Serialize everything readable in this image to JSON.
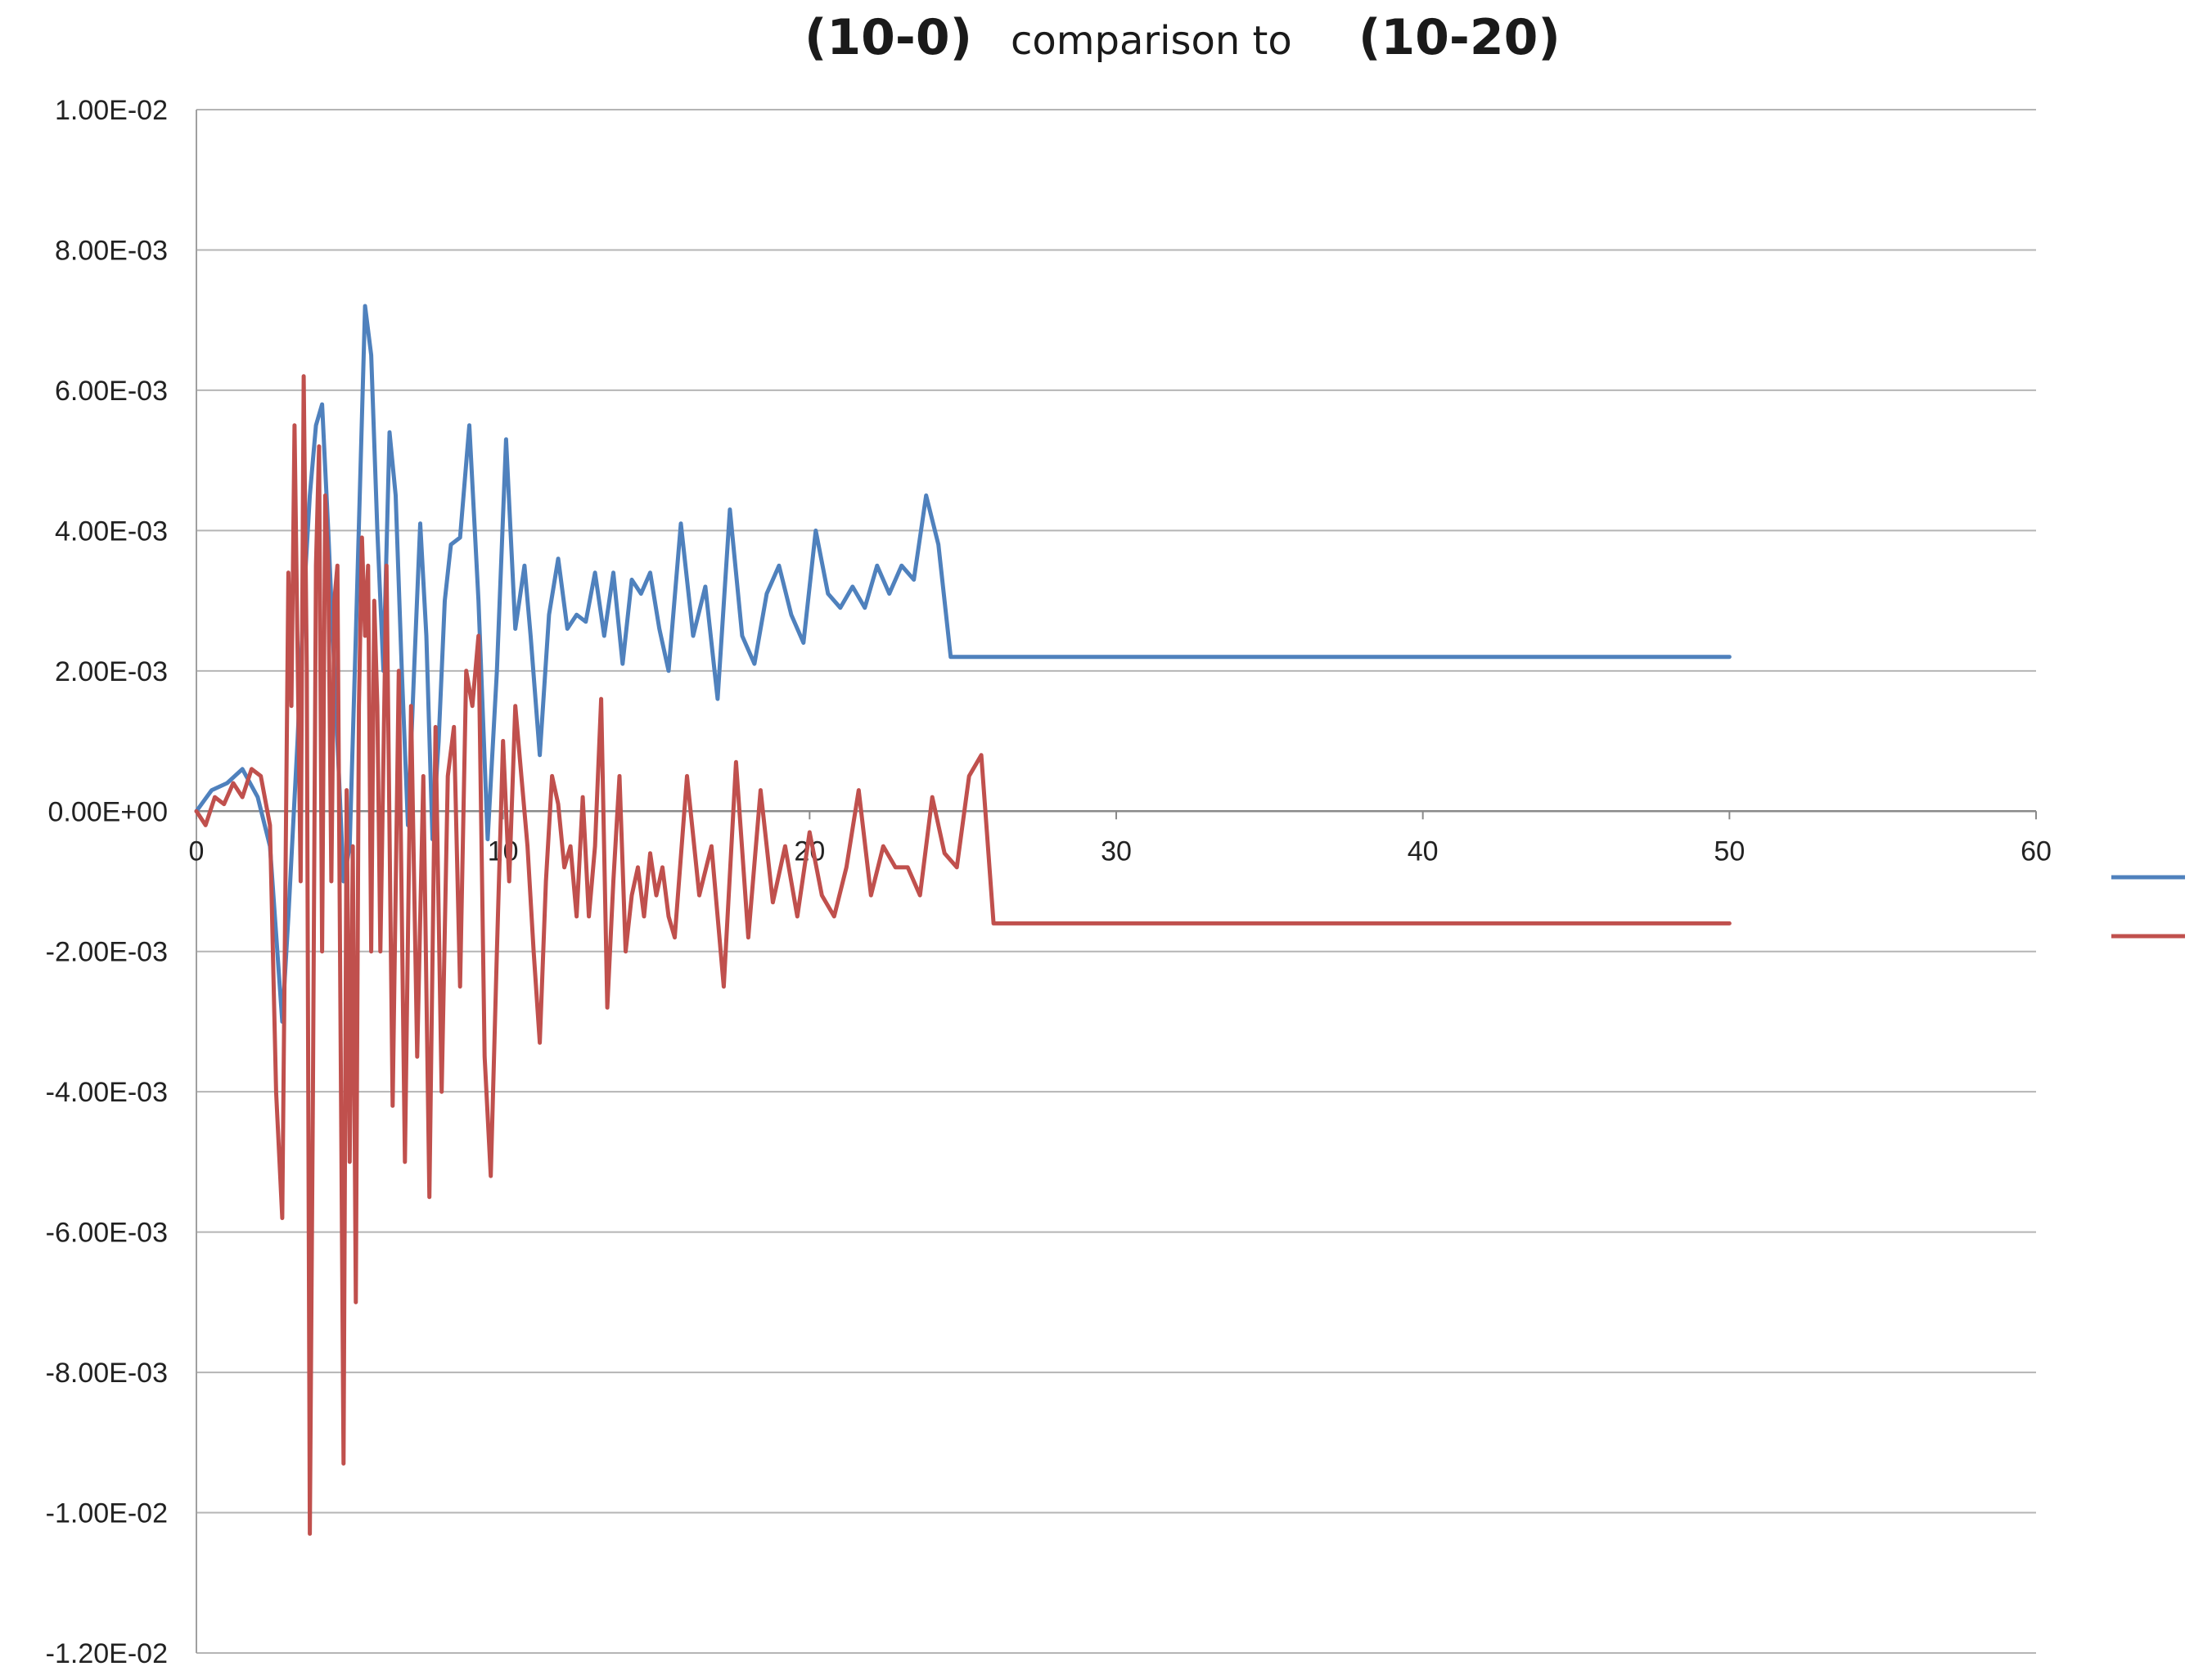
{
  "chart_data": {
    "type": "line",
    "title": {
      "part1": "(10-0)",
      "part2": "comparison to",
      "part3": "(10-20)"
    },
    "xlabel": "",
    "ylabel": "",
    "xlim": [
      0,
      60
    ],
    "ylim": [
      -0.012,
      0.01
    ],
    "x_ticks": [
      0,
      10,
      20,
      30,
      40,
      50,
      60
    ],
    "x_tick_labels": [
      "0",
      "10",
      "20",
      "30",
      "40",
      "50",
      "60"
    ],
    "y_ticks": [
      0.01,
      0.008,
      0.006,
      0.004,
      0.002,
      0,
      -0.002,
      -0.004,
      -0.006,
      -0.008,
      -0.01,
      -0.012
    ],
    "y_tick_labels": [
      "1.00E-02",
      "8.00E-03",
      "6.00E-03",
      "4.00E-03",
      "2.00E-03",
      "0.00E+00",
      "-2.00E-03",
      "-4.00E-03",
      "-6.00E-03",
      "-8.00E-03",
      "-1.00E-02",
      "-1.20E-02"
    ],
    "grid": "horizontal",
    "legend": "right",
    "series": [
      {
        "color": "#4f81bd",
        "x": [
          0,
          0.5,
          1.0,
          1.5,
          2.0,
          2.4,
          2.8,
          3.0,
          3.3,
          3.5,
          3.7,
          3.9,
          4.1,
          4.3,
          4.5,
          4.8,
          5.0,
          5.2,
          5.5,
          5.7,
          5.9,
          6.1,
          6.3,
          6.5,
          6.7,
          6.9,
          7.1,
          7.3,
          7.5,
          7.7,
          7.9,
          8.1,
          8.3,
          8.6,
          8.9,
          9.2,
          9.5,
          9.8,
          10.1,
          10.4,
          10.7,
          10.9,
          11.2,
          11.5,
          11.8,
          12.1,
          12.4,
          12.7,
          13.0,
          13.3,
          13.6,
          13.9,
          14.2,
          14.5,
          14.8,
          15.1,
          15.4,
          15.8,
          16.2,
          16.6,
          17.0,
          17.4,
          17.8,
          18.2,
          18.6,
          19.0,
          19.4,
          19.8,
          20.2,
          20.6,
          21.0,
          21.4,
          21.8,
          22.2,
          22.6,
          23.0,
          23.4,
          23.8,
          24.2,
          24.6,
          25.0,
          25.4,
          25.8,
          26.2,
          26.6,
          27.0,
          27.4,
          28.0,
          30.0,
          35.0,
          40.0,
          45.0,
          50.0
        ],
        "y": [
          0.0,
          0.0003,
          0.0004,
          0.0006,
          0.0002,
          -0.0005,
          -0.003,
          -0.0015,
          0.001,
          0.003,
          0.0045,
          0.0055,
          0.0058,
          0.004,
          0.002,
          -0.001,
          -0.0005,
          0.0025,
          0.0072,
          0.0065,
          0.004,
          0.002,
          0.0054,
          0.0045,
          0.002,
          -0.0002,
          0.002,
          0.0041,
          0.0025,
          -0.0004,
          0.001,
          0.003,
          0.0038,
          0.0039,
          0.0055,
          0.003,
          -0.0004,
          0.002,
          0.0053,
          0.0026,
          0.0035,
          0.0025,
          0.0008,
          0.0028,
          0.0036,
          0.0026,
          0.0028,
          0.0027,
          0.0034,
          0.0025,
          0.0034,
          0.0021,
          0.0033,
          0.0031,
          0.0034,
          0.0026,
          0.002,
          0.0041,
          0.0025,
          0.0032,
          0.0016,
          0.0043,
          0.0025,
          0.0021,
          0.0031,
          0.0035,
          0.0028,
          0.0024,
          0.004,
          0.0031,
          0.0029,
          0.0032,
          0.0029,
          0.0035,
          0.0031,
          0.0035,
          0.0033,
          0.0045,
          0.0038,
          0.0022,
          0.0022,
          0.0022,
          0.0022,
          0.0022,
          0.0022,
          0.0022,
          0.0022,
          0.0022,
          0.0022,
          0.0022,
          0.0022,
          0.0022,
          0.0022
        ]
      },
      {
        "color": "#c0504d",
        "x": [
          0,
          0.3,
          0.6,
          0.9,
          1.2,
          1.5,
          1.8,
          2.1,
          2.4,
          2.6,
          2.8,
          3.0,
          3.1,
          3.2,
          3.4,
          3.5,
          3.6,
          3.7,
          3.8,
          3.9,
          4.0,
          4.1,
          4.2,
          4.3,
          4.4,
          4.5,
          4.6,
          4.7,
          4.8,
          4.9,
          5.0,
          5.1,
          5.2,
          5.3,
          5.4,
          5.5,
          5.6,
          5.7,
          5.8,
          5.9,
          6.0,
          6.2,
          6.4,
          6.6,
          6.8,
          7.0,
          7.2,
          7.4,
          7.6,
          7.8,
          8.0,
          8.2,
          8.4,
          8.6,
          8.8,
          9.0,
          9.2,
          9.4,
          9.6,
          9.8,
          10.0,
          10.2,
          10.4,
          10.6,
          10.8,
          11.0,
          11.2,
          11.4,
          11.6,
          11.8,
          12.0,
          12.2,
          12.4,
          12.6,
          12.8,
          13.0,
          13.2,
          13.4,
          13.6,
          13.8,
          14.0,
          14.2,
          14.4,
          14.6,
          14.8,
          15.0,
          15.2,
          15.4,
          15.6,
          16.0,
          16.4,
          16.8,
          17.2,
          17.6,
          18.0,
          18.4,
          18.8,
          19.2,
          19.6,
          20.0,
          20.4,
          20.8,
          21.2,
          21.6,
          22.0,
          22.4,
          22.8,
          23.2,
          23.6,
          24.0,
          24.4,
          24.8,
          25.2,
          25.6,
          26.0,
          26.4,
          26.8,
          27.2,
          27.6,
          28.0,
          29.0,
          35.0,
          40.0,
          45.0,
          50.0
        ],
        "y": [
          0.0,
          -0.0002,
          0.0002,
          0.0001,
          0.0004,
          0.0002,
          0.0006,
          0.0005,
          -0.0002,
          -0.004,
          -0.0058,
          0.0034,
          0.0015,
          0.0055,
          -0.001,
          0.0062,
          0.002,
          -0.0103,
          -0.004,
          0.0035,
          0.0052,
          -0.002,
          0.0045,
          0.0035,
          -0.001,
          0.003,
          0.0035,
          -0.003,
          -0.0093,
          0.0003,
          -0.005,
          -0.0005,
          -0.007,
          0.0015,
          0.0039,
          0.0025,
          0.0035,
          -0.002,
          0.003,
          0.0015,
          -0.002,
          0.0035,
          -0.0042,
          0.002,
          -0.005,
          0.0015,
          -0.0035,
          0.0005,
          -0.0055,
          0.0012,
          -0.004,
          0.0005,
          0.0012,
          -0.0025,
          0.002,
          0.0015,
          0.0025,
          -0.0035,
          -0.0052,
          -0.002,
          0.001,
          -0.001,
          0.0015,
          0.0005,
          -0.0005,
          -0.002,
          -0.0033,
          -0.001,
          0.0005,
          0.0001,
          -0.0008,
          -0.0005,
          -0.0015,
          0.0002,
          -0.0015,
          -0.0005,
          0.0016,
          -0.0028,
          -0.001,
          0.0005,
          -0.002,
          -0.0012,
          -0.0008,
          -0.0015,
          -0.0006,
          -0.0012,
          -0.0008,
          -0.0015,
          -0.0018,
          0.0005,
          -0.0012,
          -0.0005,
          -0.0025,
          0.0007,
          -0.0018,
          0.0003,
          -0.0013,
          -0.0005,
          -0.0015,
          -0.0003,
          -0.0012,
          -0.0015,
          -0.0008,
          0.0003,
          -0.0012,
          -0.0005,
          -0.0008,
          -0.0008,
          -0.0012,
          0.0002,
          -0.0006,
          -0.0008,
          0.0005,
          0.0008,
          -0.0016,
          -0.0016,
          -0.0016,
          -0.0016,
          -0.0016,
          -0.0016,
          -0.0016,
          -0.0016,
          -0.0016,
          -0.0016,
          -0.0016
        ]
      }
    ]
  }
}
